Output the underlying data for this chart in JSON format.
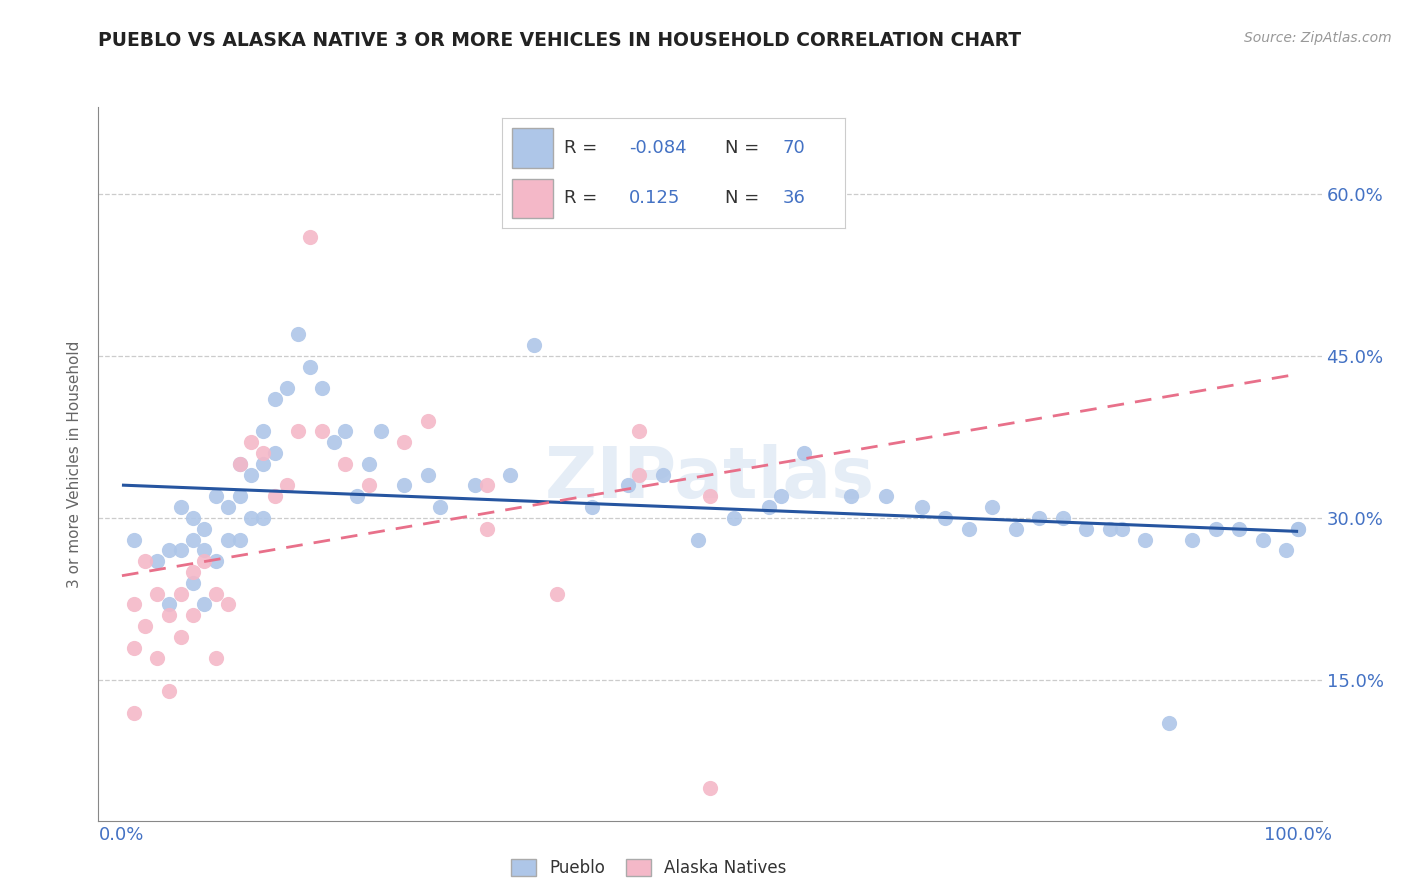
{
  "title": "PUEBLO VS ALASKA NATIVE 3 OR MORE VEHICLES IN HOUSEHOLD CORRELATION CHART",
  "source": "Source: ZipAtlas.com",
  "ylabel": "3 or more Vehicles in Household",
  "ytick_vals": [
    0.15,
    0.3,
    0.45,
    0.6
  ],
  "ytick_labels": [
    "15.0%",
    "30.0%",
    "45.0%",
    "60.0%"
  ],
  "xlim": [
    -0.02,
    1.02
  ],
  "ylim": [
    0.02,
    0.68
  ],
  "pueblo_color": "#aec6e8",
  "alaska_color": "#f4b8c8",
  "pueblo_line_color": "#2655a0",
  "alaska_line_color": "#e8708a",
  "watermark": "ZIPatlas",
  "legend_r1": "-0.084",
  "legend_n1": "70",
  "legend_r2": "0.125",
  "legend_n2": "36",
  "pueblo_x": [
    0.01,
    0.03,
    0.04,
    0.04,
    0.05,
    0.05,
    0.06,
    0.06,
    0.06,
    0.07,
    0.07,
    0.07,
    0.08,
    0.08,
    0.09,
    0.09,
    0.1,
    0.1,
    0.1,
    0.11,
    0.11,
    0.12,
    0.12,
    0.12,
    0.13,
    0.13,
    0.14,
    0.15,
    0.16,
    0.17,
    0.18,
    0.19,
    0.2,
    0.21,
    0.22,
    0.24,
    0.26,
    0.27,
    0.3,
    0.33,
    0.35,
    0.4,
    0.43,
    0.46,
    0.49,
    0.52,
    0.55,
    0.56,
    0.58,
    0.62,
    0.65,
    0.68,
    0.7,
    0.72,
    0.74,
    0.76,
    0.78,
    0.8,
    0.82,
    0.84,
    0.85,
    0.87,
    0.89,
    0.91,
    0.93,
    0.95,
    0.97,
    0.99,
    1.0,
    1.0
  ],
  "pueblo_y": [
    0.28,
    0.26,
    0.27,
    0.22,
    0.31,
    0.27,
    0.3,
    0.28,
    0.24,
    0.29,
    0.27,
    0.22,
    0.32,
    0.26,
    0.31,
    0.28,
    0.35,
    0.32,
    0.28,
    0.34,
    0.3,
    0.38,
    0.35,
    0.3,
    0.41,
    0.36,
    0.42,
    0.47,
    0.44,
    0.42,
    0.37,
    0.38,
    0.32,
    0.35,
    0.38,
    0.33,
    0.34,
    0.31,
    0.33,
    0.34,
    0.46,
    0.31,
    0.33,
    0.34,
    0.28,
    0.3,
    0.31,
    0.32,
    0.36,
    0.32,
    0.32,
    0.31,
    0.3,
    0.29,
    0.31,
    0.29,
    0.3,
    0.3,
    0.29,
    0.29,
    0.29,
    0.28,
    0.11,
    0.28,
    0.29,
    0.29,
    0.28,
    0.27,
    0.29,
    0.29
  ],
  "alaska_x": [
    0.01,
    0.01,
    0.01,
    0.02,
    0.02,
    0.03,
    0.03,
    0.04,
    0.04,
    0.05,
    0.05,
    0.06,
    0.06,
    0.07,
    0.08,
    0.08,
    0.09,
    0.1,
    0.11,
    0.12,
    0.13,
    0.14,
    0.15,
    0.16,
    0.17,
    0.19,
    0.21,
    0.24,
    0.26,
    0.31,
    0.31,
    0.37,
    0.44,
    0.44,
    0.5,
    0.5
  ],
  "alaska_y": [
    0.22,
    0.18,
    0.12,
    0.26,
    0.2,
    0.23,
    0.17,
    0.21,
    0.14,
    0.23,
    0.19,
    0.25,
    0.21,
    0.26,
    0.23,
    0.17,
    0.22,
    0.35,
    0.37,
    0.36,
    0.32,
    0.33,
    0.38,
    0.56,
    0.38,
    0.35,
    0.33,
    0.37,
    0.39,
    0.33,
    0.29,
    0.23,
    0.38,
    0.34,
    0.32,
    0.05
  ]
}
